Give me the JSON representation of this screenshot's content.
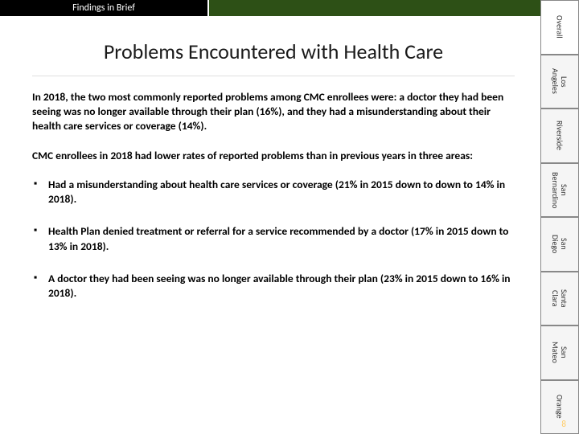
{
  "header": {
    "tab_label": "Findings in Brief",
    "top_bar_color": "#2d5016",
    "tab_bg": "#000000",
    "tab_fg": "#ffffff"
  },
  "title": "Problems Encountered with Health Care",
  "paragraphs": [
    "In 2018, the two most commonly reported problems among CMC enrollees were: a doctor they had been seeing was no longer available through their plan (16%), and they had a misunderstanding about their health care services or coverage (14%).",
    "CMC enrollees in 2018 had lower rates of reported problems than in previous years in three areas:"
  ],
  "bullets": [
    "Had a misunderstanding about health care services or coverage (21% in 2015 down to down to 14% in 2018).",
    " Health Plan denied treatment or referral for a service recommended by a doctor (17% in 2015 down to 13% in 2018).",
    "A doctor they had been seeing was no longer available through their plan (23% in 2015 down to 16% in 2018)."
  ],
  "bullet_mark": "▪",
  "side_tabs": [
    {
      "label": "Overall",
      "active": true
    },
    {
      "label": "Los\nAngeles",
      "active": false
    },
    {
      "label": "Riverside",
      "active": false
    },
    {
      "label": "San\nBernardino",
      "active": false
    },
    {
      "label": "San\nDiego",
      "active": false
    },
    {
      "label": "Santa\nClara",
      "active": false
    },
    {
      "label": "San\nMateo",
      "active": false
    },
    {
      "label": "Orange",
      "active": false
    }
  ],
  "page_number": "8",
  "colors": {
    "page_number": "#ffcc66",
    "tab_border": "#888888",
    "tab_inactive_bg": "#f5f5f5",
    "tab_active_bg": "#ffffff"
  }
}
